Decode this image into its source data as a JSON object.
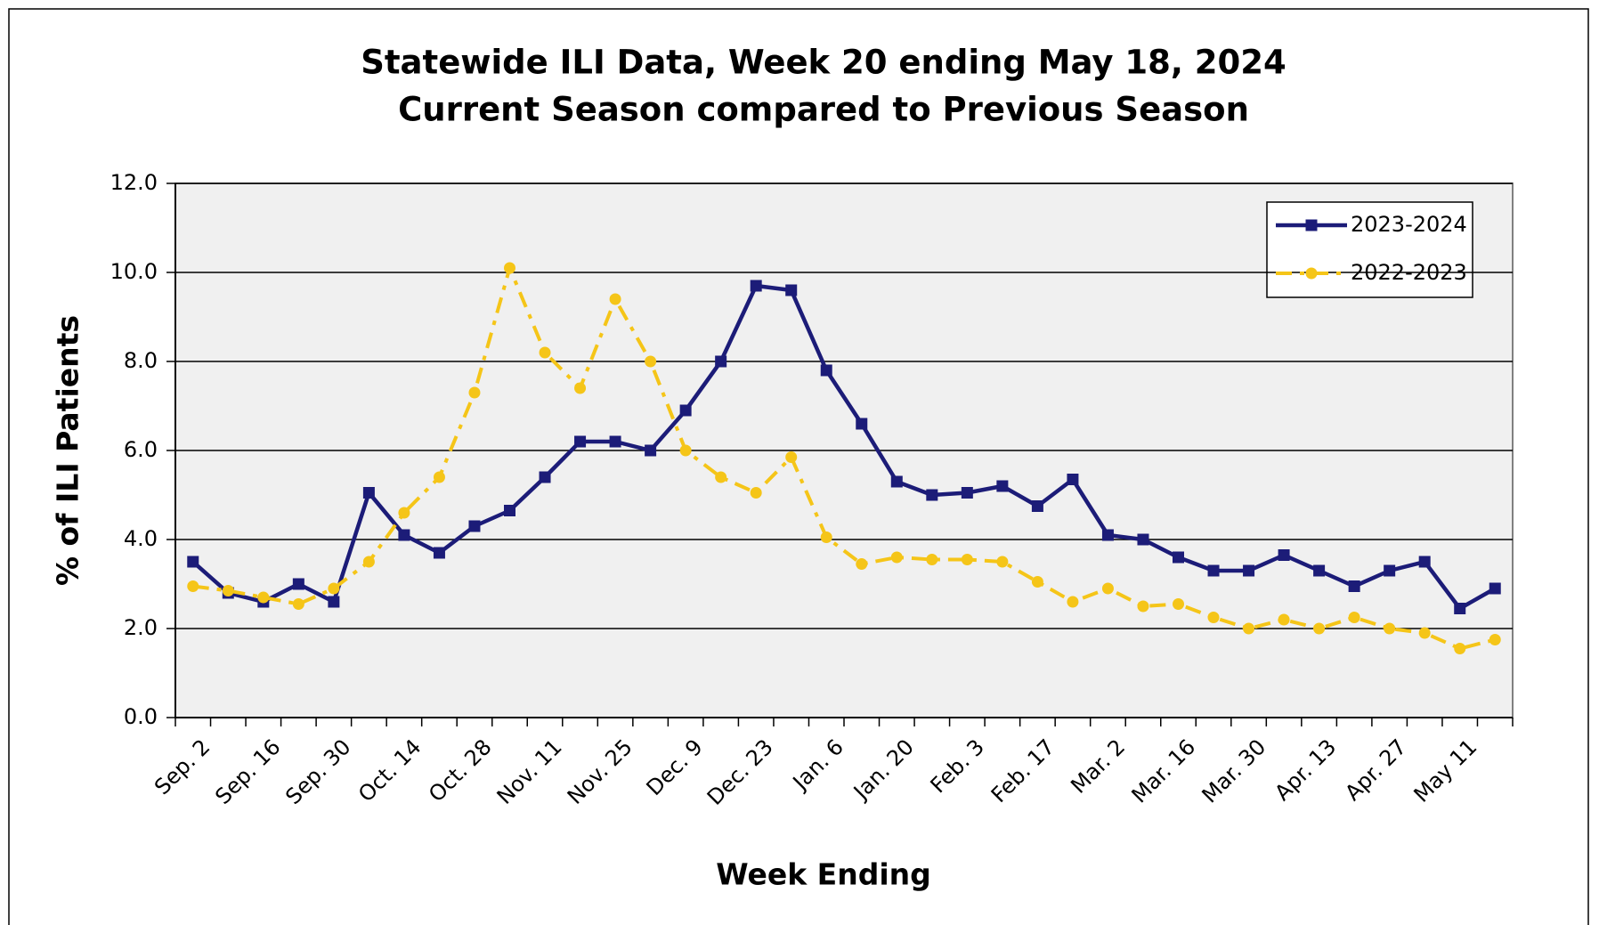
{
  "chart_data": {
    "type": "line",
    "title": "Statewide ILI Data, Week 20 ending May 18, 2024",
    "subtitle": "Current Season compared to Previous Season",
    "x_label": "Week Ending",
    "y_label": "% of ILI Patients",
    "categories": [
      "Sep. 2",
      null,
      "Sep. 16",
      null,
      "Sep. 30",
      null,
      "Oct. 14",
      null,
      "Oct. 28",
      null,
      "Nov. 11",
      null,
      "Nov. 25",
      null,
      "Dec. 9",
      null,
      "Dec. 23",
      null,
      "Jan. 6",
      null,
      "Jan. 20",
      null,
      "Feb. 3",
      null,
      "Feb. 17",
      null,
      "Mar. 2",
      null,
      "Mar. 16",
      null,
      "Mar. 30",
      null,
      "Apr. 13",
      null,
      "Apr. 27",
      null,
      "May 11",
      null
    ],
    "series": [
      {
        "name": "2023-2024",
        "color": "#1c1c78",
        "values": [
          3.5,
          2.8,
          2.6,
          3.0,
          2.6,
          5.05,
          4.1,
          3.7,
          4.3,
          4.65,
          5.4,
          6.2,
          6.2,
          6.0,
          6.9,
          8.0,
          9.7,
          9.6,
          7.8,
          6.6,
          5.3,
          5.0,
          5.05,
          5.2,
          4.75,
          5.35,
          4.1,
          4.0,
          3.6,
          3.3,
          3.3,
          3.65,
          3.3,
          2.95,
          3.3,
          3.5,
          2.45,
          2.9
        ]
      },
      {
        "name": "2022-2023",
        "color": "#f5c518",
        "values": [
          2.95,
          2.85,
          2.7,
          2.55,
          2.9,
          3.5,
          4.6,
          5.4,
          7.3,
          10.1,
          8.2,
          7.4,
          9.4,
          8.0,
          6.0,
          5.4,
          5.05,
          5.85,
          4.05,
          3.45,
          3.6,
          3.55,
          3.55,
          3.5,
          3.05,
          2.6,
          2.9,
          2.5,
          2.55,
          2.25,
          2.0,
          2.2,
          2.0,
          2.25,
          2.0,
          1.9,
          1.55,
          1.75
        ]
      }
    ],
    "ylim": [
      0,
      12
    ],
    "yticks": [
      {
        "value": 0,
        "label": "0.0"
      },
      {
        "value": 2,
        "label": "2.0"
      },
      {
        "value": 4,
        "label": "4.0"
      },
      {
        "value": 6,
        "label": "6.0"
      },
      {
        "value": 8,
        "label": "8.0"
      },
      {
        "value": 10,
        "label": "10.0"
      },
      {
        "value": 12,
        "label": "12.0"
      }
    ],
    "grid": true,
    "legend": "upper right"
  }
}
